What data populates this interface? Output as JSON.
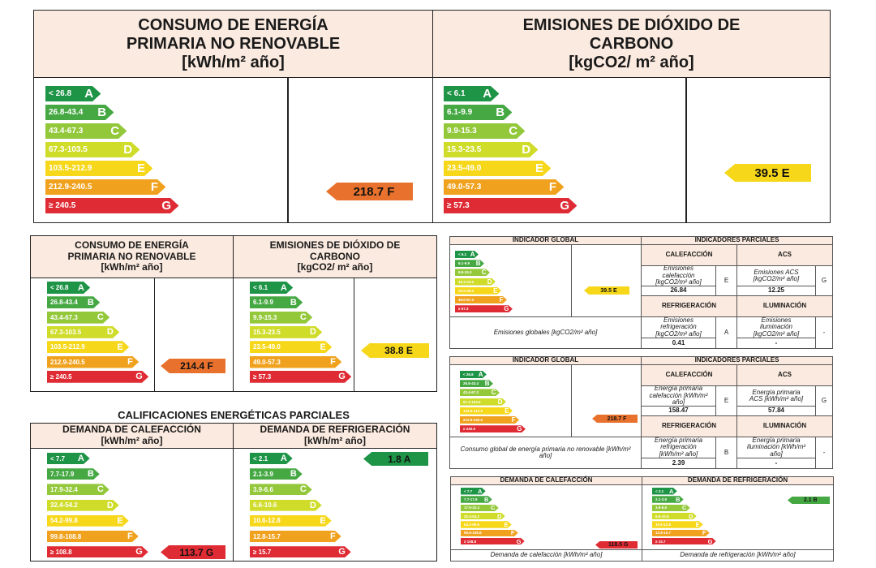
{
  "colors": [
    "#1e9447",
    "#45a843",
    "#93c83b",
    "#cfdc2a",
    "#f6d71a",
    "#f0a21f",
    "#e8722d",
    "#df2b34"
  ],
  "grades": [
    "A",
    "B",
    "C",
    "D",
    "E",
    "F",
    "G"
  ],
  "top_primary": {
    "title_line1": "CONSUMO DE ENERGÍA",
    "title_line2": "PRIMARIA NO RENOVABLE",
    "unit": "[kWh/m² año]",
    "ranges": [
      "< 26.8",
      "26.8-43.4",
      "43.4-67.3",
      "67.3-103.5",
      "103.5-212.9",
      "212.9-240.5",
      "≥ 240.5"
    ],
    "rating": "218.7 F"
  },
  "top_co2": {
    "title_line1": "EMISIONES DE DIÓXIDO DE",
    "title_line2": "CARBONO",
    "unit": "[kgCO2/ m² año]",
    "ranges": [
      "< 6.1",
      "6.1-9.9",
      "9.9-15.3",
      "15.3-23.5",
      "23.5-49.0",
      "49.0-57.3",
      "≥ 57.3"
    ],
    "rating": "39.5 E"
  },
  "mid_primary": {
    "title_line1": "CONSUMO DE ENERGÍA",
    "title_line2": "PRIMARIA NO RENOVABLE",
    "unit": "[kWh/m² año]",
    "ranges": [
      "< 26.8",
      "26.8-43.4",
      "43.4-67.3",
      "67.3-103.5",
      "103.5-212.9",
      "212.9-240.5",
      "≥ 240.5"
    ],
    "rating": "214.4 F"
  },
  "mid_co2": {
    "title_line1": "EMISIONES DE DIÓXIDO DE",
    "title_line2": "CARBONO",
    "unit": "[kgCO2/ m² año]",
    "ranges": [
      "< 6.1",
      "6.1-9.9",
      "9.9-15.3",
      "15.3-23.5",
      "23.5-49.0",
      "49.0-57.3",
      "≥ 57.3"
    ],
    "rating": "38.8 E"
  },
  "partial": {
    "section_title": "CALIFICACIONES ENERGÉTICAS PARCIALES",
    "heating_title": "DEMANDA DE CALEFACCIÓN",
    "heating_unit": "[kWh/m² año]",
    "heating_ranges": [
      "< 7.7",
      "7.7-17.9",
      "17.9-32.4",
      "32.4-54.2",
      "54.2-99.8",
      "99.8-108.8",
      "≥ 108.8"
    ],
    "heating_rating": "113.7 G",
    "cooling_title": "DEMANDA DE REFRIGERACIÓN",
    "cooling_unit": "[kWh/m² año]",
    "cooling_ranges": [
      "< 2.1",
      "2.1-3.9",
      "3.9-6.6",
      "6.6-10.6",
      "10.6-12.8",
      "12.8-15.7",
      "≥ 15.7"
    ],
    "cooling_rating": "1.8 A"
  },
  "table1": {
    "global_header": "INDICADOR GLOBAL",
    "partial_header": "INDICADORES PARCIALES",
    "ranges": [
      "< 6.1",
      "6.1-9.9",
      "9.9-15.3",
      "15.3-23.5",
      "23.5-49.0",
      "49.0-57.3",
      "≥ 57.3"
    ],
    "rating": "39.5 E",
    "calefaccion": "CALEFACCIÓN",
    "acs": "ACS",
    "cal_label": "Emisiones calefacción [kgCO2/m² año]",
    "cal_grade": "E",
    "cal_value": "26.84",
    "acs_label": "Emisiones ACS [kgCO2/m² año]",
    "acs_grade": "G",
    "acs_value": "12.25",
    "refrigeracion": "REFRIGERACIÓN",
    "iluminacion": "ILUMINACIÓN",
    "global_label": "Emisiones globales [kgCO2/m² año]",
    "ref_label": "Emisiones refrigeración [kgCO2/m² año]",
    "ref_grade": "A",
    "ref_value": "0.41",
    "ilu_label": "Emisiones iluminación [kgCO2/m² año]",
    "ilu_grade": "-",
    "ilu_value": "-"
  },
  "table2": {
    "global_header": "INDICADOR GLOBAL",
    "partial_header": "INDICADORES PARCIALES",
    "ranges": [
      "< 26.8",
      "26.8-43.4",
      "43.4-67.3",
      "67.3-103.5",
      "103.5-212.9",
      "212.9-240.5",
      "≥ 240.5"
    ],
    "rating": "218.7 F",
    "calefaccion": "CALEFACCIÓN",
    "acs": "ACS",
    "cal_label": "Energía primaria calefacción [kWh/m² año]",
    "cal_grade": "E",
    "cal_value": "158.47",
    "acs_label": "Energía primaria ACS [kWh/m² año]",
    "acs_grade": "G",
    "acs_value": "57.84",
    "refrigeracion": "REFRIGERACIÓN",
    "iluminacion": "ILUMINACIÓN",
    "global_label": "Consumo global de energía primaria no renovable [kWh/m² año]",
    "ref_label": "Energía primaria refrigeración [kWh/m² año]",
    "ref_grade": "B",
    "ref_value": "2.39",
    "ilu_label": "Energía primaria iluminación [kWh/m² año]",
    "ilu_grade": "-",
    "ilu_value": "-"
  },
  "table3": {
    "heating_header": "DEMANDA DE CALEFACCIÓN",
    "cooling_header": "DEMANDA DE REFRIGERACIÓN",
    "heating_ranges": [
      "< 7.7",
      "7.7-17.9",
      "17.9-32.4",
      "32.4-54.2",
      "54.2-99.8",
      "99.8-108.8",
      "≥ 108.8"
    ],
    "cooling_ranges": [
      "< 2.1",
      "2.1-3.9",
      "3.9-6.6",
      "6.6-10.6",
      "10.6-12.8",
      "12.8-15.7",
      "≥ 15.7"
    ],
    "heating_rating": "118.5 G",
    "cooling_rating": "2.1 B",
    "heating_footer": "Demanda de calefacción [kWh/m² año]",
    "cooling_footer": "Demanda de refrigeración [kWh/m² año]"
  }
}
